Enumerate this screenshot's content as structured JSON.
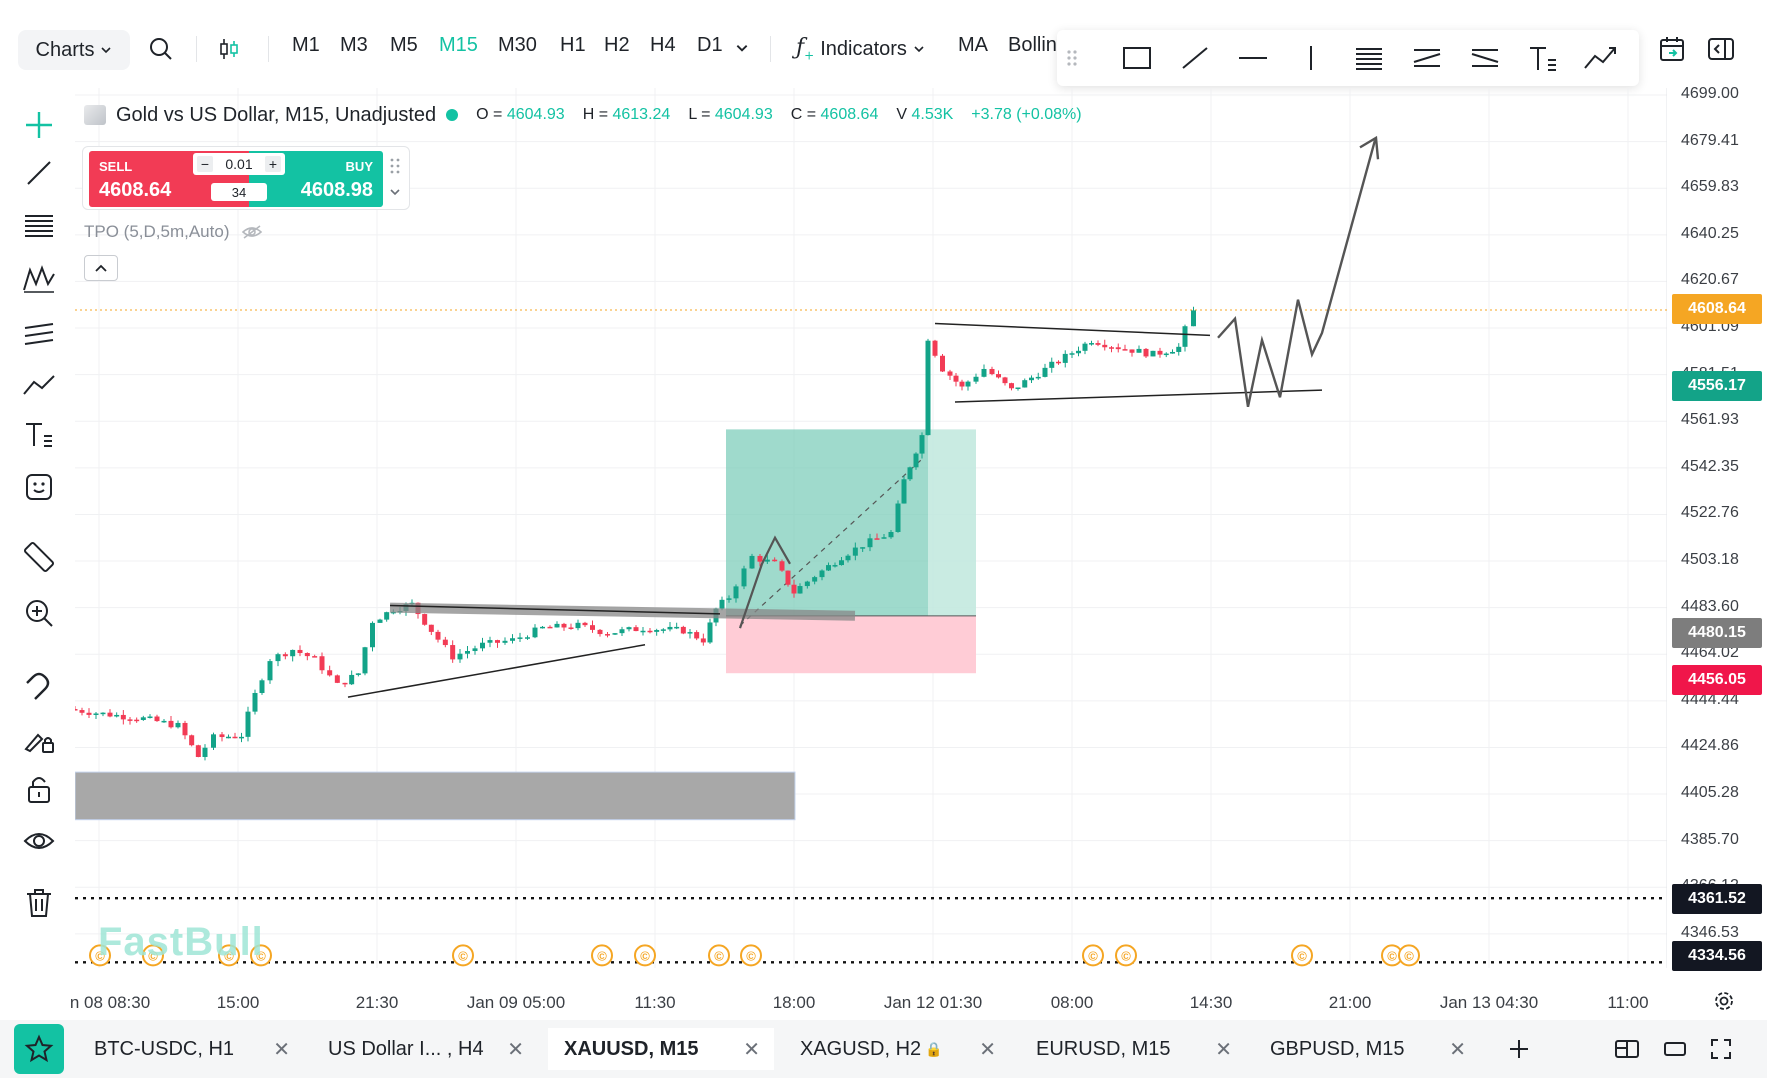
{
  "toolbar": {
    "charts_label": "Charts",
    "timeframes": [
      "M1",
      "M3",
      "M5",
      "M15",
      "M30",
      "H1",
      "H2",
      "H4",
      "D1"
    ],
    "active_timeframe": "M15",
    "indicators_label": "Indicators",
    "ma_label": "MA",
    "bollinger_label": "Bolling"
  },
  "legend": {
    "title": "Gold vs US Dollar, M15, Unadjusted",
    "o_label": "O =",
    "o": "4604.93",
    "h_label": "H =",
    "h": "4613.24",
    "l_label": "L =",
    "l": "4604.93",
    "c_label": "C =",
    "c": "4608.64",
    "v_label": "V",
    "v": "4.53K",
    "change": "+3.78 (+0.08%)"
  },
  "trade": {
    "sell_label": "SELL",
    "sell_price": "4608.64",
    "buy_label": "BUY",
    "buy_price": "4608.98",
    "lot": "0.01",
    "spread": "34"
  },
  "indicator": {
    "tpo_label": "TPO (5,D,5m,Auto)"
  },
  "watermark": "FastBull",
  "price_axis": {
    "ticks": [
      "4699.00",
      "4679.41",
      "4659.83",
      "4640.25",
      "4620.67",
      "4601.09",
      "4581.51",
      "4561.93",
      "4542.35",
      "4522.76",
      "4503.18",
      "4483.60",
      "4464.02",
      "4444.44",
      "4424.86",
      "4405.28",
      "4385.70",
      "4366.12",
      "4346.53"
    ],
    "last_price": "4608.64",
    "tp_price": "4556.17",
    "entry_price": "4480.15",
    "sl_price": "4456.05",
    "line1_price": "4361.52",
    "line2_price": "4334.56"
  },
  "time_axis": {
    "ticks": [
      "n 08 08:30",
      "15:00",
      "21:30",
      "Jan 09 05:00",
      "11:30",
      "18:00",
      "Jan 12 01:30",
      "08:00",
      "14:30",
      "21:00",
      "Jan 13 04:30",
      "11:00"
    ]
  },
  "colors": {
    "accent": "#13c2a3",
    "down": "#f23b55",
    "last_price": "#f5a623",
    "tp_zone": "#9fdccf",
    "sl_zone": "#ffc9d4",
    "dark_label": "#131722",
    "entry_label": "#7d7d7d"
  },
  "tabs": [
    {
      "label": "BTC-USDC, H1"
    },
    {
      "label": "US Dollar I... , H4"
    },
    {
      "label": "XAUUSD, M15"
    },
    {
      "label": "XAGUSD, H2"
    },
    {
      "label": "EURUSD, M15"
    },
    {
      "label": "GBPUSD, M15"
    }
  ],
  "active_tab": "XAUUSD, M15",
  "icons": {
    "left": [
      "crosshair-icon",
      "trend-line-icon",
      "fib-icon",
      "pattern-icon",
      "channel-icon",
      "path-icon",
      "text-icon",
      "emoji-icon",
      "ruler-icon",
      "zoom-in-icon",
      "magnet-icon",
      "brush-lock-icon",
      "lock-icon",
      "eye-icon",
      "trash-icon"
    ],
    "drawbar": [
      "drag-handle-icon",
      "rectangle-icon",
      "line-icon",
      "horizontal-line-icon",
      "vertical-line-icon",
      "fib-retracement-icon",
      "parallel-channel-icon",
      "regression-icon",
      "text-tool-icon",
      "path-tool-icon"
    ]
  }
}
